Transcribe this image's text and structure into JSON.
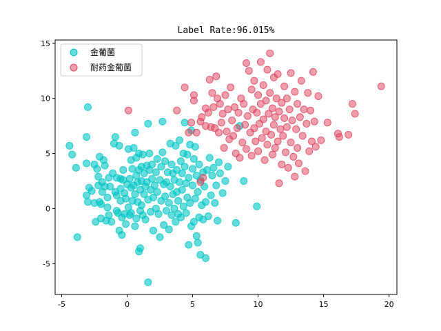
{
  "chart_data": {
    "type": "scatter",
    "title": "Label Rate:96.015%",
    "xlabel": "",
    "ylabel": "",
    "xlim": [
      -5.5,
      20.6
    ],
    "ylim": [
      -7.8,
      15.3
    ],
    "xticks": [
      -5,
      0,
      5,
      10,
      15,
      20
    ],
    "yticks": [
      -5,
      0,
      5,
      10,
      15
    ],
    "grid": false,
    "legend_position": "top-left",
    "series": [
      {
        "name": "金葡菌",
        "color": "#00c5c5",
        "points": [
          [
            -4.4,
            5.7
          ],
          [
            -4.2,
            4.9
          ],
          [
            -3.9,
            3.7
          ],
          [
            -3.8,
            -2.6
          ],
          [
            -3.1,
            4.1
          ],
          [
            -3.1,
            1.2
          ],
          [
            -3.0,
            9.2
          ],
          [
            -3.1,
            6.5
          ],
          [
            -3.0,
            0.6
          ],
          [
            -2.9,
            1.9
          ],
          [
            -2.7,
            1.6
          ],
          [
            -2.5,
            4.0
          ],
          [
            -2.5,
            0.5
          ],
          [
            -2.4,
            -1.2
          ],
          [
            -2.3,
            3.6
          ],
          [
            -2.2,
            2.9
          ],
          [
            -2.2,
            2.1
          ],
          [
            -2.1,
            4.7
          ],
          [
            -2.1,
            0.6
          ],
          [
            -2.0,
            -0.9
          ],
          [
            -2.0,
            0.4
          ],
          [
            -1.9,
            2.4
          ],
          [
            -1.9,
            1.5
          ],
          [
            -1.8,
            4.4
          ],
          [
            -1.7,
            3.9
          ],
          [
            -1.7,
            2.0
          ],
          [
            -1.6,
            -1.1
          ],
          [
            -1.5,
            1.0
          ],
          [
            -1.5,
            0.1
          ],
          [
            -1.4,
            2.8
          ],
          [
            -1.4,
            -0.6
          ],
          [
            -1.3,
            2.0
          ],
          [
            -1.2,
            -1.2
          ],
          [
            -1.1,
            3.2
          ],
          [
            -1.0,
            5.9
          ],
          [
            -0.9,
            6.5
          ],
          [
            -0.9,
            1.5
          ],
          [
            -0.8,
            2.8
          ],
          [
            -0.8,
            1.2
          ],
          [
            -0.8,
            -0.2
          ],
          [
            -0.7,
            -0.4
          ],
          [
            -0.6,
            -2.0
          ],
          [
            -0.6,
            5.7
          ],
          [
            -0.5,
            2.7
          ],
          [
            -0.5,
            1.8
          ],
          [
            -0.5,
            0.7
          ],
          [
            -0.4,
            -0.8
          ],
          [
            -0.4,
            -2.4
          ],
          [
            -0.3,
            3.5
          ],
          [
            -0.3,
            2.6
          ],
          [
            -0.2,
            1.4
          ],
          [
            -0.2,
            -0.5
          ],
          [
            -0.1,
            0.9
          ],
          [
            -0.1,
            -1.4
          ],
          [
            0.0,
            2.2
          ],
          [
            0.1,
            5.4
          ],
          [
            0.1,
            0.1
          ],
          [
            0.2,
            -0.6
          ],
          [
            0.2,
            2.7
          ],
          [
            0.3,
            4.4
          ],
          [
            0.3,
            1.9
          ],
          [
            0.3,
            -0.4
          ],
          [
            0.4,
            3.6
          ],
          [
            0.4,
            0.7
          ],
          [
            0.5,
            5.5
          ],
          [
            0.5,
            2.1
          ],
          [
            0.6,
            1.3
          ],
          [
            0.6,
            -1.6
          ],
          [
            0.6,
            6.9
          ],
          [
            0.7,
            4.6
          ],
          [
            0.7,
            3.0
          ],
          [
            0.7,
            -0.9
          ],
          [
            0.8,
            2.4
          ],
          [
            0.8,
            0.6
          ],
          [
            0.9,
            -3.9
          ],
          [
            0.9,
            5.0
          ],
          [
            0.9,
            3.5
          ],
          [
            1.0,
            -3.6
          ],
          [
            1.0,
            1.7
          ],
          [
            1.0,
            -0.2
          ],
          [
            1.1,
            3.8
          ],
          [
            1.1,
            2.5
          ],
          [
            1.1,
            0.3
          ],
          [
            1.2,
            4.9
          ],
          [
            1.2,
            -0.6
          ],
          [
            1.3,
            1.3
          ],
          [
            1.3,
            3.2
          ],
          [
            1.4,
            2.0
          ],
          [
            1.4,
            -1.0
          ],
          [
            1.5,
            3.9
          ],
          [
            1.5,
            2.4
          ],
          [
            1.6,
            0.8
          ],
          [
            1.6,
            7.7
          ],
          [
            1.6,
            -6.7
          ],
          [
            1.7,
            3.5
          ],
          [
            1.7,
            5.0
          ],
          [
            1.8,
            1.7
          ],
          [
            1.8,
            -0.3
          ],
          [
            1.9,
            2.7
          ],
          [
            1.9,
            4.0
          ],
          [
            2.0,
            1.0
          ],
          [
            2.0,
            -2.0
          ],
          [
            2.1,
            2.1
          ],
          [
            2.2,
            3.3
          ],
          [
            2.2,
            0.0
          ],
          [
            2.3,
            4.5
          ],
          [
            2.3,
            1.5
          ],
          [
            2.4,
            -0.5
          ],
          [
            2.5,
            2.6
          ],
          [
            2.5,
            -2.6
          ],
          [
            2.6,
            3.8
          ],
          [
            2.6,
            0.7
          ],
          [
            2.7,
            5.1
          ],
          [
            2.7,
            7.9
          ],
          [
            2.8,
            2.2
          ],
          [
            2.8,
            -1.5
          ],
          [
            2.9,
            4.3
          ],
          [
            2.9,
            1.1
          ],
          [
            3.0,
            2.4
          ],
          [
            3.0,
            -0.2
          ],
          [
            3.1,
            3.3
          ],
          [
            3.2,
            0.5
          ],
          [
            3.2,
            -1.9
          ],
          [
            3.3,
            5.9
          ],
          [
            3.3,
            2.0
          ],
          [
            3.4,
            4.0
          ],
          [
            3.4,
            -0.6
          ],
          [
            3.5,
            1.3
          ],
          [
            3.5,
            3.2
          ],
          [
            3.6,
            0.0
          ],
          [
            3.6,
            2.6
          ],
          [
            3.7,
            5.7
          ],
          [
            3.7,
            -1.2
          ],
          [
            3.8,
            3.5
          ],
          [
            3.8,
            1.5
          ],
          [
            3.9,
            -0.5
          ],
          [
            3.9,
            0.7
          ],
          [
            4.0,
            6.2
          ],
          [
            4.0,
            2.4
          ],
          [
            4.1,
            4.3
          ],
          [
            4.1,
            -0.8
          ],
          [
            4.2,
            3.2
          ],
          [
            4.2,
            1.7
          ],
          [
            4.3,
            5.0
          ],
          [
            4.3,
            0.2
          ],
          [
            4.4,
            7.8
          ],
          [
            4.4,
            3.8
          ],
          [
            4.5,
            2.3
          ],
          [
            4.5,
            -0.4
          ],
          [
            4.6,
            4.9
          ],
          [
            4.6,
            1.0
          ],
          [
            4.7,
            -3.3
          ],
          [
            4.7,
            2.8
          ],
          [
            4.8,
            5.8
          ],
          [
            4.8,
            0.5
          ],
          [
            4.9,
            7.1
          ],
          [
            4.9,
            -1.6
          ],
          [
            5.0,
            3.6
          ],
          [
            5.0,
            2.1
          ],
          [
            5.1,
            4.5
          ],
          [
            5.1,
            -1.2
          ],
          [
            5.2,
            5.6
          ],
          [
            5.2,
            0.9
          ],
          [
            5.3,
            -2.5
          ],
          [
            5.3,
            3.0
          ],
          [
            5.4,
            -3.1
          ],
          [
            5.4,
            1.5
          ],
          [
            5.5,
            4.0
          ],
          [
            5.5,
            -0.8
          ],
          [
            5.6,
            2.6
          ],
          [
            5.6,
            -4.2
          ],
          [
            5.7,
            0.3
          ],
          [
            5.8,
            3.3
          ],
          [
            5.8,
            -1.0
          ],
          [
            5.9,
            2.0
          ],
          [
            6.0,
            0.6
          ],
          [
            6.0,
            -4.5
          ],
          [
            6.1,
            3.5
          ],
          [
            6.2,
            -0.7
          ],
          [
            6.3,
            4.6
          ],
          [
            6.4,
            1.2
          ],
          [
            6.5,
            3.0
          ],
          [
            6.6,
            3.7
          ],
          [
            6.7,
            0.5
          ],
          [
            6.8,
            2.1
          ],
          [
            6.9,
            -1.1
          ],
          [
            7.0,
            4.2
          ],
          [
            7.1,
            3.2
          ],
          [
            7.3,
            1.4
          ],
          [
            7.5,
            2.5
          ],
          [
            7.7,
            3.8
          ],
          [
            8.3,
            -1.3
          ],
          [
            8.6,
            7.5
          ],
          [
            8.9,
            2.5
          ],
          [
            9.9,
            0.2
          ]
        ]
      },
      {
        "name": "耐药金葡菌",
        "color": "#e0405a",
        "points": [
          [
            0.1,
            8.9
          ],
          [
            3.8,
            8.9
          ],
          [
            4.4,
            11.0
          ],
          [
            4.7,
            6.9
          ],
          [
            4.9,
            7.8
          ],
          [
            5.1,
            9.8
          ],
          [
            5.1,
            10.3
          ],
          [
            5.3,
            6.9
          ],
          [
            5.6,
            2.4
          ],
          [
            5.6,
            7.9
          ],
          [
            5.7,
            8.3
          ],
          [
            5.8,
            2.8
          ],
          [
            6.0,
            7.5
          ],
          [
            6.0,
            9.1
          ],
          [
            6.2,
            8.7
          ],
          [
            6.3,
            11.7
          ],
          [
            6.4,
            7.4
          ],
          [
            6.5,
            10.5
          ],
          [
            6.6,
            9.2
          ],
          [
            6.7,
            7.3
          ],
          [
            6.8,
            12.0
          ],
          [
            6.9,
            10.0
          ],
          [
            7.0,
            6.9
          ],
          [
            7.1,
            9.5
          ],
          [
            7.2,
            7.8
          ],
          [
            7.3,
            8.6
          ],
          [
            7.4,
            5.5
          ],
          [
            7.5,
            10.3
          ],
          [
            7.6,
            7.0
          ],
          [
            7.7,
            9.0
          ],
          [
            7.8,
            6.3
          ],
          [
            7.9,
            11.0
          ],
          [
            8.0,
            8.0
          ],
          [
            8.1,
            6.6
          ],
          [
            8.2,
            9.2
          ],
          [
            8.3,
            5.0
          ],
          [
            8.4,
            7.3
          ],
          [
            8.5,
            8.7
          ],
          [
            8.6,
            4.6
          ],
          [
            8.7,
            10.0
          ],
          [
            8.8,
            6.0
          ],
          [
            8.9,
            9.5
          ],
          [
            9.0,
            7.6
          ],
          [
            9.1,
            13.2
          ],
          [
            9.1,
            5.4
          ],
          [
            9.2,
            8.4
          ],
          [
            9.3,
            12.5
          ],
          [
            9.4,
            6.9
          ],
          [
            9.5,
            10.8
          ],
          [
            9.5,
            4.8
          ],
          [
            9.6,
            9.0
          ],
          [
            9.7,
            7.3
          ],
          [
            9.7,
            11.6
          ],
          [
            9.8,
            6.1
          ],
          [
            9.9,
            8.7
          ],
          [
            10.0,
            10.3
          ],
          [
            10.0,
            5.2
          ],
          [
            10.1,
            7.7
          ],
          [
            10.2,
            9.5
          ],
          [
            10.2,
            13.3
          ],
          [
            10.3,
            6.4
          ],
          [
            10.4,
            8.1
          ],
          [
            10.4,
            11.2
          ],
          [
            10.5,
            4.4
          ],
          [
            10.6,
            9.8
          ],
          [
            10.6,
            7.0
          ],
          [
            10.7,
            12.6
          ],
          [
            10.7,
            5.8
          ],
          [
            10.8,
            8.6
          ],
          [
            10.9,
            10.5
          ],
          [
            10.9,
            14.1
          ],
          [
            11.0,
            6.7
          ],
          [
            11.1,
            9.1
          ],
          [
            11.1,
            4.9
          ],
          [
            11.2,
            7.6
          ],
          [
            11.2,
            11.9
          ],
          [
            11.3,
            8.3
          ],
          [
            11.3,
            5.5
          ],
          [
            11.4,
            10.0
          ],
          [
            11.5,
            6.1
          ],
          [
            11.5,
            12.2
          ],
          [
            11.6,
            8.8
          ],
          [
            11.6,
            2.3
          ],
          [
            11.7,
            7.2
          ],
          [
            11.8,
            9.6
          ],
          [
            11.8,
            4.0
          ],
          [
            11.9,
            6.6
          ],
          [
            12.0,
            11.1
          ],
          [
            12.0,
            8.2
          ],
          [
            12.1,
            5.1
          ],
          [
            12.2,
            10.0
          ],
          [
            12.2,
            7.4
          ],
          [
            12.3,
            3.7
          ],
          [
            12.4,
            9.0
          ],
          [
            12.5,
            6.0
          ],
          [
            12.5,
            12.3
          ],
          [
            12.6,
            8.0
          ],
          [
            12.7,
            4.7
          ],
          [
            12.8,
            10.6
          ],
          [
            12.8,
            2.9
          ],
          [
            12.9,
            7.2
          ],
          [
            13.0,
            5.5
          ],
          [
            13.0,
            9.5
          ],
          [
            13.1,
            4.1
          ],
          [
            13.2,
            8.3
          ],
          [
            13.3,
            11.6
          ],
          [
            13.4,
            6.6
          ],
          [
            13.5,
            9.0
          ],
          [
            13.6,
            3.4
          ],
          [
            13.7,
            7.7
          ],
          [
            13.8,
            10.5
          ],
          [
            13.9,
            5.2
          ],
          [
            14.0,
            8.9
          ],
          [
            14.1,
            6.1
          ],
          [
            14.2,
            12.4
          ],
          [
            14.3,
            7.9
          ],
          [
            14.4,
            5.6
          ],
          [
            14.6,
            10.2
          ],
          [
            14.8,
            6.2
          ],
          [
            15.3,
            7.8
          ],
          [
            16.1,
            6.8
          ],
          [
            16.2,
            6.5
          ],
          [
            16.9,
            6.7
          ],
          [
            17.2,
            9.5
          ],
          [
            17.4,
            8.6
          ],
          [
            19.4,
            11.1
          ]
        ]
      }
    ]
  }
}
